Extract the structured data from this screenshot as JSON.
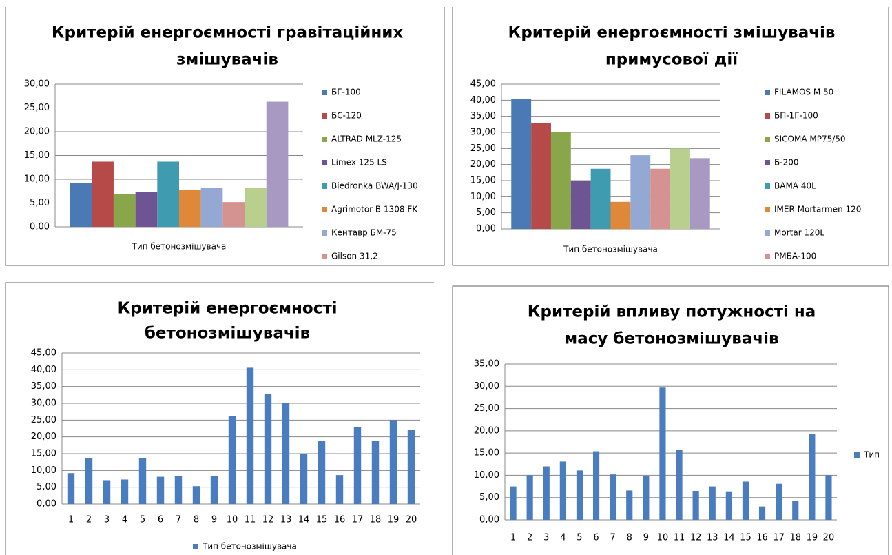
{
  "chart_data": [
    {
      "type": "bar",
      "title": [
        "Критерій енергоємності гравітаційних",
        "змішувачів"
      ],
      "categories": [
        "Тип бетонозмішувача"
      ],
      "series": [
        {
          "name": "БГ-100",
          "color": "#4a7ab5",
          "values": [
            9.2
          ]
        },
        {
          "name": "БС-120",
          "color": "#b54a48",
          "values": [
            13.7
          ]
        },
        {
          "name": "ALTRAD  MLZ-125",
          "color": "#8aa64a",
          "values": [
            6.9
          ]
        },
        {
          "name": "Limex 125 LS",
          "color": "#6f5493",
          "values": [
            7.3
          ]
        },
        {
          "name": "Biedronka BWA/J-130",
          "color": "#3f9bb0",
          "values": [
            13.7
          ]
        },
        {
          "name": "Agrimotor B 1308 FK",
          "color": "#e0883a",
          "values": [
            7.7
          ]
        },
        {
          "name": "Кентавр БМ-75",
          "color": "#93a9d3",
          "values": [
            8.2
          ]
        },
        {
          "name": "Gilson 31,2",
          "color": "#d49391",
          "values": [
            5.2
          ]
        },
        {
          "name": null,
          "color": "#b8cf8e",
          "values": [
            8.2
          ]
        },
        {
          "name": null,
          "color": "#a899c3",
          "values": [
            26.3
          ]
        }
      ],
      "ylim": [
        0,
        30
      ],
      "yticks": [
        {
          "value": 0,
          "label": "0,00"
        },
        {
          "value": 5,
          "label": "5,00"
        },
        {
          "value": 10,
          "label": "10,00"
        },
        {
          "value": 15,
          "label": "15,00"
        },
        {
          "value": 20,
          "label": "20,00"
        },
        {
          "value": 25,
          "label": "25,00"
        },
        {
          "value": 30,
          "label": "30,00"
        }
      ],
      "grid": true,
      "legend": "right"
    },
    {
      "type": "bar",
      "title": [
        "Критерій енергоємності змішувачів",
        "примусової дії"
      ],
      "categories": [
        "Тип бетонозмішувача"
      ],
      "series": [
        {
          "name": "FILAMOS M 50",
          "color": "#4a7ab5",
          "values": [
            40.5
          ]
        },
        {
          "name": "БП-1Г-100",
          "color": "#b54a48",
          "values": [
            32.8
          ]
        },
        {
          "name": "SICOMA MP75/50",
          "color": "#8aa64a",
          "values": [
            30.1
          ]
        },
        {
          "name": "Б-200",
          "color": "#6f5493",
          "values": [
            15.0
          ]
        },
        {
          "name": "BAMA 40L",
          "color": "#3f9bb0",
          "values": [
            18.7
          ]
        },
        {
          "name": "IMER Mortarmen 120",
          "color": "#e0883a",
          "values": [
            8.4
          ]
        },
        {
          "name": "Mortar 120L",
          "color": "#93a9d3",
          "values": [
            22.9
          ]
        },
        {
          "name": "РМБА-100",
          "color": "#d49391",
          "values": [
            18.7
          ]
        },
        {
          "name": null,
          "color": "#b8cf8e",
          "values": [
            25.0
          ]
        },
        {
          "name": null,
          "color": "#a899c3",
          "values": [
            22.0
          ]
        }
      ],
      "ylim": [
        0,
        45
      ],
      "yticks": [
        {
          "value": 0,
          "label": "0,00"
        },
        {
          "value": 5,
          "label": "5,00"
        },
        {
          "value": 10,
          "label": "10,00"
        },
        {
          "value": 15,
          "label": "15,00"
        },
        {
          "value": 20,
          "label": "20,00"
        },
        {
          "value": 25,
          "label": "25,00"
        },
        {
          "value": 30,
          "label": "30,00"
        },
        {
          "value": 35,
          "label": "35,00"
        },
        {
          "value": 40,
          "label": "40,00"
        },
        {
          "value": 45,
          "label": "45,00"
        }
      ],
      "grid": true,
      "legend": "right"
    },
    {
      "type": "bar",
      "title": [
        "Критерій енергоємності",
        "бетонозмішувачів"
      ],
      "categories": [
        "1",
        "2",
        "3",
        "4",
        "5",
        "6",
        "7",
        "8",
        "9",
        "10",
        "11",
        "12",
        "13",
        "14",
        "15",
        "16",
        "17",
        "18",
        "19",
        "20"
      ],
      "series": [
        {
          "name": "Тип бетонозмішувача",
          "color": "#4a7dbf",
          "values": [
            9.2,
            13.7,
            7.1,
            7.3,
            13.7,
            8.1,
            8.3,
            5.3,
            8.3,
            26.3,
            40.6,
            32.8,
            30.0,
            15.0,
            18.7,
            8.6,
            22.9,
            18.7,
            25.0,
            22.0
          ]
        }
      ],
      "ylim": [
        0,
        45
      ],
      "yticks": [
        {
          "value": 0,
          "label": "0,00"
        },
        {
          "value": 5,
          "label": "5,00"
        },
        {
          "value": 10,
          "label": "10,00"
        },
        {
          "value": 15,
          "label": "15,00"
        },
        {
          "value": 20,
          "label": "20,00"
        },
        {
          "value": 25,
          "label": "25,00"
        },
        {
          "value": 30,
          "label": "30,00"
        },
        {
          "value": 35,
          "label": "35,00"
        },
        {
          "value": 40,
          "label": "40,00"
        },
        {
          "value": 45,
          "label": "45,00"
        }
      ],
      "grid": true,
      "legend": "bottom"
    },
    {
      "type": "bar",
      "title": [
        "Критерій впливу потужності на",
        "масу бетонозмішувачів"
      ],
      "categories": [
        "1",
        "2",
        "3",
        "4",
        "5",
        "6",
        "7",
        "8",
        "9",
        "10",
        "11",
        "12",
        "13",
        "14",
        "15",
        "16",
        "17",
        "18",
        "19",
        "20"
      ],
      "series": [
        {
          "name": "Тип",
          "color": "#4a7dbf",
          "values": [
            7.5,
            10.0,
            12.0,
            13.1,
            11.1,
            15.4,
            10.2,
            6.6,
            9.9,
            29.7,
            15.8,
            6.5,
            7.5,
            6.4,
            8.6,
            3.0,
            8.1,
            4.2,
            19.2,
            10.0
          ]
        }
      ],
      "ylim": [
        0,
        35
      ],
      "yticks": [
        {
          "value": 0,
          "label": "0,00"
        },
        {
          "value": 5,
          "label": "5,00"
        },
        {
          "value": 10,
          "label": "10,00"
        },
        {
          "value": 15,
          "label": "15,00"
        },
        {
          "value": 20,
          "label": "20,00"
        },
        {
          "value": 25,
          "label": "25,00"
        },
        {
          "value": 30,
          "label": "30,00"
        },
        {
          "value": 35,
          "label": "35,00"
        }
      ],
      "grid": true,
      "legend": "right"
    }
  ]
}
